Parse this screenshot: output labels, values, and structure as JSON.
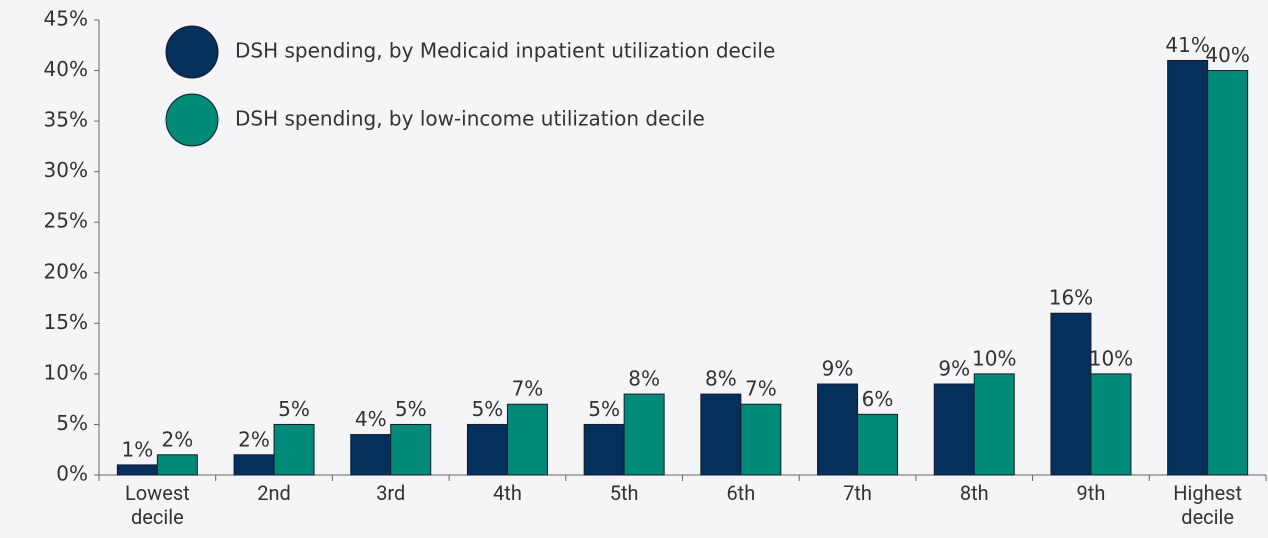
{
  "chart_data": {
    "type": "bar",
    "categories": [
      "Lowest decile",
      "2nd",
      "3rd",
      "4th",
      "5th",
      "6th",
      "7th",
      "8th",
      "9th",
      "Highest decile"
    ],
    "series": [
      {
        "name": "DSH spending, by Medicaid inpatient utilization decile",
        "color": "#06305c",
        "values": [
          1,
          2,
          4,
          5,
          5,
          8,
          9,
          9,
          16,
          41
        ],
        "value_labels": [
          "1%",
          "2%",
          "4%",
          "5%",
          "5%",
          "8%",
          "9%",
          "9%",
          "16%",
          "41%"
        ]
      },
      {
        "name": "DSH spending, by low-income utilization decile",
        "color": "#008a78",
        "values": [
          2,
          5,
          5,
          7,
          8,
          7,
          6,
          10,
          10,
          40
        ],
        "value_labels": [
          "2%",
          "5%",
          "5%",
          "7%",
          "8%",
          "7%",
          "6%",
          "10%",
          "10%",
          "40%"
        ]
      }
    ],
    "ylim": [
      0,
      45
    ],
    "yticks": [
      {
        "value": 0,
        "label": "0%"
      },
      {
        "value": 5,
        "label": "5%"
      },
      {
        "value": 10,
        "label": "10%"
      },
      {
        "value": 15,
        "label": "15%"
      },
      {
        "value": 20,
        "label": "20%"
      },
      {
        "value": 25,
        "label": "25%"
      },
      {
        "value": 30,
        "label": "30%"
      },
      {
        "value": 35,
        "label": "35%"
      },
      {
        "value": 40,
        "label": "40%"
      },
      {
        "value": 45,
        "label": "45%"
      }
    ],
    "legend": "top-left"
  }
}
